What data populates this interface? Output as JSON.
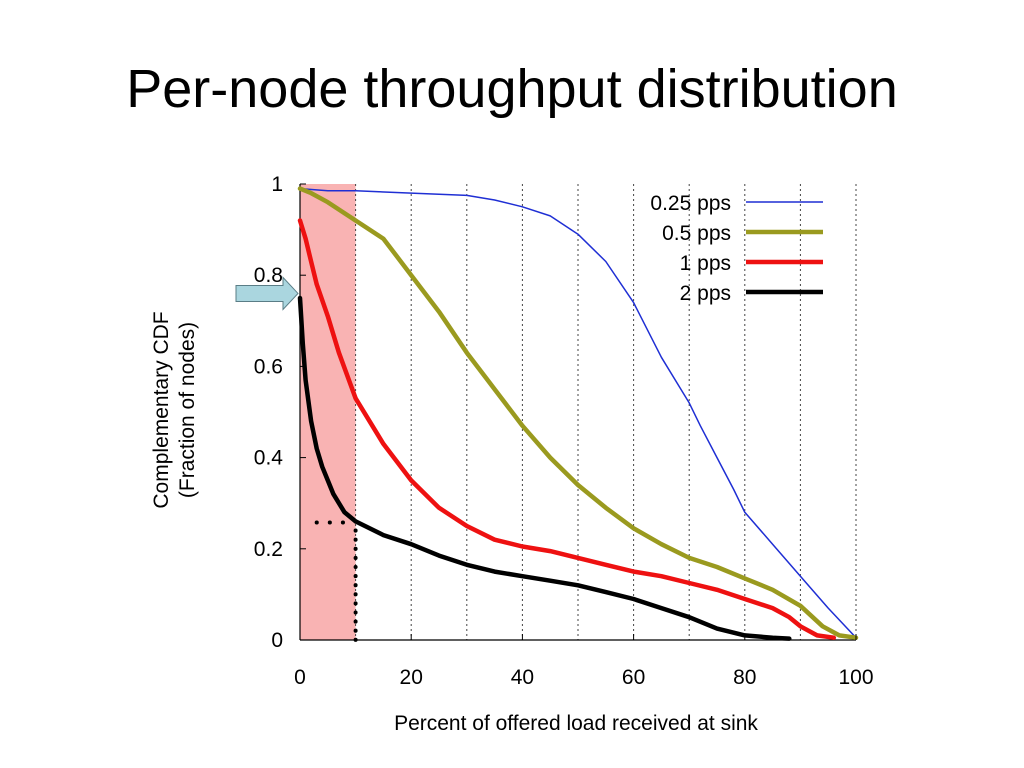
{
  "slide": {
    "title": "Per-node throughput distribution"
  },
  "chart_data": {
    "type": "line",
    "title": "",
    "xlabel": "Percent of offered load received at sink",
    "ylabel_lines": [
      "Complementary CDF",
      "(Fraction of nodes)"
    ],
    "xlim": [
      0,
      100
    ],
    "ylim": [
      0,
      1
    ],
    "xticks": [
      0,
      20,
      40,
      60,
      80,
      100
    ],
    "yticks": [
      0,
      0.2,
      0.4,
      0.6,
      0.8,
      1
    ],
    "xtick_labels": [
      "0",
      "20",
      "40",
      "60",
      "80",
      "100"
    ],
    "ytick_labels": [
      "0",
      "0.2",
      "0.4",
      "0.6",
      "0.8",
      "1"
    ],
    "grid": "vertical dotted every 10",
    "legend_position": "top-right",
    "highlight_region": {
      "x": [
        0,
        10
      ],
      "color": "#f9b3b3"
    },
    "arrow_marker": {
      "y": 0.76,
      "color": "#aad6df"
    },
    "dotted_guide": {
      "x": 10,
      "y": 0.26
    },
    "series": [
      {
        "name": "0.25 pps",
        "color": "#1f2fd4",
        "width": 1.5,
        "x": [
          0,
          5,
          10,
          20,
          30,
          35,
          40,
          45,
          50,
          55,
          60,
          65,
          70,
          72,
          75,
          78,
          80,
          85,
          90,
          95,
          100
        ],
        "y": [
          0.99,
          0.985,
          0.985,
          0.98,
          0.975,
          0.965,
          0.95,
          0.93,
          0.89,
          0.83,
          0.74,
          0.62,
          0.52,
          0.47,
          0.4,
          0.33,
          0.28,
          0.21,
          0.14,
          0.07,
          0.005
        ]
      },
      {
        "name": "0.5 pps",
        "color": "#9a9a1f",
        "width": 4.5,
        "x": [
          0,
          2,
          5,
          10,
          15,
          20,
          25,
          30,
          35,
          40,
          45,
          50,
          55,
          60,
          65,
          70,
          75,
          80,
          85,
          90,
          94,
          97,
          100
        ],
        "y": [
          0.99,
          0.98,
          0.96,
          0.92,
          0.88,
          0.8,
          0.72,
          0.63,
          0.55,
          0.47,
          0.4,
          0.34,
          0.29,
          0.245,
          0.21,
          0.18,
          0.16,
          0.135,
          0.11,
          0.075,
          0.03,
          0.01,
          0.005
        ]
      },
      {
        "name": "1 pps",
        "color": "#ee1111",
        "width": 4.5,
        "x": [
          0,
          1,
          2,
          3,
          5,
          7,
          10,
          15,
          20,
          25,
          30,
          35,
          40,
          45,
          50,
          55,
          60,
          65,
          70,
          75,
          80,
          85,
          88,
          90,
          93,
          96
        ],
        "y": [
          0.92,
          0.88,
          0.83,
          0.78,
          0.71,
          0.63,
          0.53,
          0.43,
          0.35,
          0.29,
          0.25,
          0.22,
          0.205,
          0.195,
          0.18,
          0.165,
          0.15,
          0.14,
          0.125,
          0.11,
          0.09,
          0.07,
          0.05,
          0.03,
          0.01,
          0.005
        ]
      },
      {
        "name": "2 pps",
        "color": "#000000",
        "width": 4.5,
        "x": [
          0,
          0.5,
          1,
          2,
          3,
          4,
          5,
          6,
          8,
          10,
          15,
          20,
          25,
          30,
          35,
          40,
          45,
          50,
          55,
          60,
          65,
          70,
          75,
          80,
          85,
          88
        ],
        "y": [
          0.75,
          0.65,
          0.57,
          0.48,
          0.42,
          0.38,
          0.35,
          0.32,
          0.28,
          0.26,
          0.23,
          0.21,
          0.185,
          0.165,
          0.15,
          0.14,
          0.13,
          0.12,
          0.105,
          0.09,
          0.07,
          0.05,
          0.025,
          0.01,
          0.005,
          0.003
        ]
      }
    ]
  }
}
